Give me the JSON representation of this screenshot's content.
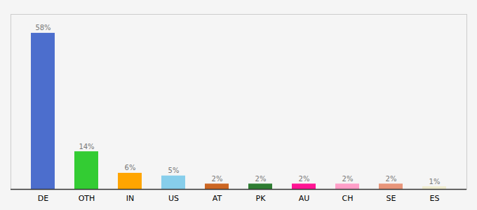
{
  "chart_data": {
    "type": "bar",
    "categories": [
      "DE",
      "OTH",
      "IN",
      "US",
      "AT",
      "PK",
      "AU",
      "CH",
      "SE",
      "ES"
    ],
    "values": [
      58,
      14,
      6,
      5,
      2,
      2,
      2,
      2,
      2,
      1
    ],
    "value_labels": [
      "58%",
      "14%",
      "6%",
      "5%",
      "2%",
      "2%",
      "2%",
      "2%",
      "2%",
      "1%"
    ],
    "colors": [
      "#4C6ECD",
      "#33CC33",
      "#FFA500",
      "#87CEEB",
      "#CC6622",
      "#2E7D32",
      "#FF1493",
      "#FF9EC8",
      "#E8957A",
      "#F0EDD0"
    ],
    "ylim": [
      0,
      65
    ],
    "data_labels": true,
    "tick_labels": "x"
  }
}
